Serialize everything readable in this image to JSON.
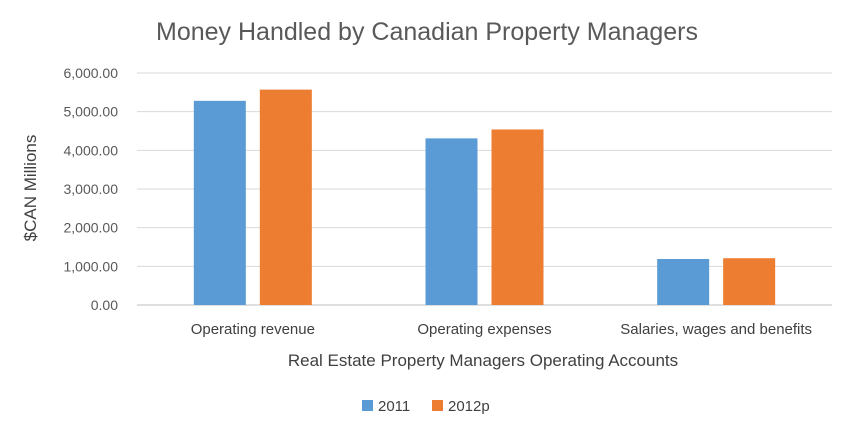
{
  "chart_data": {
    "type": "bar",
    "title": "Money Handled by Canadian Property Managers",
    "xlabel": "Real Estate Property Managers Operating Accounts",
    "ylabel": "$CAN Millions",
    "categories": [
      "Operating revenue",
      "Operating expenses",
      "Salaries, wages and benefits"
    ],
    "series": [
      {
        "name": "2011",
        "color": "#5B9BD5",
        "values": [
          5280,
          4310,
          1190
        ]
      },
      {
        "name": "2012p",
        "color": "#ED7D31",
        "values": [
          5570,
          4540,
          1210
        ]
      }
    ],
    "ylim": [
      0,
      6000
    ],
    "yticks": [
      0,
      1000,
      2000,
      3000,
      4000,
      5000,
      6000
    ],
    "ytick_labels": [
      "0.00",
      "1,000.00",
      "2,000.00",
      "3,000.00",
      "4,000.00",
      "5,000.00",
      "6,000.00"
    ],
    "grid": true,
    "legend_position": "bottom"
  }
}
